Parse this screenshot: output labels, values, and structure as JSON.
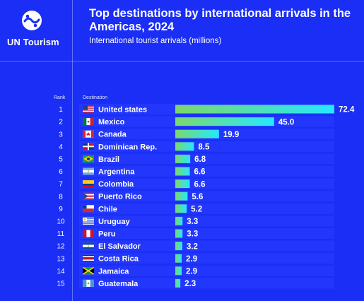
{
  "brand": {
    "name": "UN Tourism"
  },
  "colors": {
    "background": "#1a2ef5",
    "bar_start": "#7dd86a",
    "bar_end": "#24e8ff",
    "row_band": "#2a40ff"
  },
  "header": {
    "title": "Top destinations by international arrivals in the Americas, 2024",
    "subtitle": "International tourist arrivals (millions)"
  },
  "table": {
    "rank_header": "Rank",
    "destination_header": "Destination"
  },
  "chart_data": {
    "type": "bar",
    "title": "Top destinations by international arrivals in the Americas, 2024",
    "subtitle": "International tourist arrivals (millions)",
    "orientation": "horizontal",
    "ranks": [
      "1",
      "2",
      "3",
      "4",
      "5",
      "6",
      "7",
      "8",
      "9",
      "10",
      "11",
      "12",
      "13",
      "14",
      "15"
    ],
    "categories": [
      "United states",
      "Mexico",
      "Canada",
      "Dominican Rep.",
      "Brazil",
      "Argentina",
      "Colombia",
      "Puerto Rico",
      "Chile",
      "Uruguay",
      "Peru",
      "El Salvador",
      "Costa Rica",
      "Jamaica",
      "Guatemala"
    ],
    "values": [
      72.4,
      45.0,
      19.9,
      8.5,
      6.8,
      6.6,
      6.6,
      5.6,
      5.2,
      3.3,
      3.3,
      3.2,
      2.9,
      2.9,
      2.3
    ],
    "value_labels": [
      "72.4",
      "45.0",
      "19.9",
      "8.5",
      "6.8",
      "6.6",
      "6.6",
      "5.6",
      "5.2",
      "3.3",
      "3.3",
      "3.2",
      "2.9",
      "2.9",
      "2.3"
    ],
    "flag_icons": [
      "flag-us-icon",
      "flag-mx-icon",
      "flag-ca-icon",
      "flag-do-icon",
      "flag-br-icon",
      "flag-ar-icon",
      "flag-co-icon",
      "flag-pr-icon",
      "flag-cl-icon",
      "flag-uy-icon",
      "flag-pe-icon",
      "flag-sv-icon",
      "flag-cr-icon",
      "flag-jm-icon",
      "flag-gt-icon"
    ],
    "xlim": [
      0,
      72.4
    ],
    "grid": false,
    "legend": "none"
  }
}
